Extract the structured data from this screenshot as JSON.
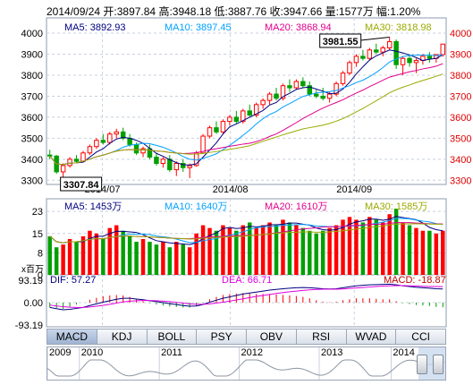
{
  "header": {
    "text": "2014/09/24 开:3897.84 高:3948.18 低:3887.76 收:3947.66 量:1577万 幅:1.20%"
  },
  "price_panel": {
    "ma_labels": [
      "MA5: 3892.93",
      "MA10: 3897.45",
      "MA20: 3868.94",
      "MA30: 3818.98"
    ],
    "ma_colors": [
      "#000080",
      "#00a0ff",
      "#e0008c",
      "#9aaa00"
    ],
    "yticks": [
      "4000",
      "3900",
      "3800",
      "3700",
      "3600",
      "3500",
      "3400",
      "3300"
    ],
    "xticks": [
      "2014/07",
      "2014/08",
      "2014/09"
    ],
    "callout_high": "3981.55",
    "callout_low": "3307.84"
  },
  "volume_panel": {
    "ma_labels": [
      "MA5: 1453万",
      "MA10: 1640万",
      "MA20: 1610万",
      "MA30: 1585万"
    ],
    "yticks": [
      "23",
      "15",
      "8",
      "0"
    ],
    "unit": "x百万"
  },
  "macd_panel": {
    "labels": [
      "DIF: 57.27",
      "DEA: 66.71",
      "MACD: -18.87"
    ],
    "yticks": [
      "93.19",
      "0.00",
      "-93.19"
    ]
  },
  "tabs": [
    "MACD",
    "KDJ",
    "BOLL",
    "PSY",
    "OBV",
    "RSI",
    "WVAD",
    "CCI"
  ],
  "navigator": {
    "years": [
      "2009",
      "2010",
      "2011",
      "2012",
      "2013",
      "2014"
    ]
  },
  "colors": {
    "up": "#ff0000",
    "down": "#00a000",
    "grid": "#c8d0dc",
    "frame": "#8c9bb0"
  },
  "chart_data": {
    "type": "candlestick",
    "ylim": [
      3280,
      4030
    ],
    "candles_ohlc": [
      [
        3420,
        3445,
        3400,
        3415
      ],
      [
        3415,
        3420,
        3330,
        3340
      ],
      [
        3340,
        3380,
        3308,
        3370
      ],
      [
        3370,
        3410,
        3360,
        3400
      ],
      [
        3400,
        3420,
        3380,
        3390
      ],
      [
        3390,
        3440,
        3385,
        3430
      ],
      [
        3430,
        3470,
        3420,
        3460
      ],
      [
        3460,
        3500,
        3450,
        3490
      ],
      [
        3490,
        3520,
        3470,
        3480
      ],
      [
        3480,
        3530,
        3470,
        3520
      ],
      [
        3520,
        3545,
        3500,
        3530
      ],
      [
        3530,
        3550,
        3490,
        3500
      ],
      [
        3500,
        3520,
        3460,
        3470
      ],
      [
        3470,
        3480,
        3420,
        3430
      ],
      [
        3430,
        3460,
        3410,
        3450
      ],
      [
        3450,
        3470,
        3400,
        3410
      ],
      [
        3410,
        3430,
        3370,
        3380
      ],
      [
        3380,
        3410,
        3360,
        3400
      ],
      [
        3400,
        3420,
        3340,
        3350
      ],
      [
        3350,
        3390,
        3320,
        3380
      ],
      [
        3380,
        3400,
        3340,
        3360
      ],
      [
        3360,
        3380,
        3310,
        3370
      ],
      [
        3370,
        3440,
        3365,
        3430
      ],
      [
        3430,
        3520,
        3425,
        3510
      ],
      [
        3510,
        3560,
        3500,
        3550
      ],
      [
        3550,
        3580,
        3520,
        3530
      ],
      [
        3530,
        3590,
        3520,
        3580
      ],
      [
        3580,
        3610,
        3560,
        3600
      ],
      [
        3600,
        3630,
        3570,
        3580
      ],
      [
        3580,
        3640,
        3570,
        3630
      ],
      [
        3630,
        3660,
        3600,
        3610
      ],
      [
        3610,
        3670,
        3600,
        3660
      ],
      [
        3660,
        3690,
        3640,
        3680
      ],
      [
        3680,
        3720,
        3660,
        3710
      ],
      [
        3710,
        3740,
        3680,
        3690
      ],
      [
        3690,
        3760,
        3680,
        3750
      ],
      [
        3750,
        3780,
        3720,
        3740
      ],
      [
        3740,
        3780,
        3730,
        3770
      ],
      [
        3770,
        3790,
        3740,
        3750
      ],
      [
        3750,
        3770,
        3700,
        3710
      ],
      [
        3710,
        3730,
        3690,
        3700
      ],
      [
        3700,
        3740,
        3680,
        3690
      ],
      [
        3690,
        3720,
        3670,
        3710
      ],
      [
        3710,
        3770,
        3700,
        3760
      ],
      [
        3760,
        3820,
        3750,
        3810
      ],
      [
        3810,
        3870,
        3800,
        3860
      ],
      [
        3860,
        3900,
        3840,
        3890
      ],
      [
        3890,
        3920,
        3870,
        3880
      ],
      [
        3880,
        3930,
        3870,
        3920
      ],
      [
        3920,
        3950,
        3900,
        3910
      ],
      [
        3910,
        3940,
        3890,
        3930
      ],
      [
        3930,
        3981,
        3920,
        3960
      ],
      [
        3960,
        3970,
        3830,
        3850
      ],
      [
        3850,
        3890,
        3800,
        3880
      ],
      [
        3880,
        3900,
        3840,
        3860
      ],
      [
        3860,
        3880,
        3810,
        3870
      ],
      [
        3870,
        3900,
        3850,
        3890
      ],
      [
        3890,
        3910,
        3860,
        3880
      ],
      [
        3880,
        3900,
        3860,
        3898
      ],
      [
        3898,
        3948,
        3888,
        3948
      ]
    ],
    "volume": [
      14,
      10,
      11,
      13,
      12,
      14,
      16,
      15,
      13,
      17,
      18,
      16,
      14,
      12,
      13,
      12,
      11,
      12,
      10,
      12,
      11,
      10,
      15,
      18,
      17,
      16,
      18,
      17,
      16,
      18,
      19,
      17,
      18,
      19,
      18,
      20,
      19,
      18,
      17,
      16,
      15,
      16,
      17,
      18,
      20,
      21,
      20,
      19,
      21,
      20,
      19,
      22,
      24,
      19,
      18,
      17,
      16,
      16,
      15,
      16
    ],
    "macd_dif": [
      -20,
      -25,
      -30,
      -28,
      -24,
      -20,
      -12,
      -5,
      2,
      8,
      14,
      18,
      18,
      15,
      12,
      8,
      4,
      0,
      -4,
      -8,
      -12,
      -15,
      -14,
      -8,
      2,
      10,
      18,
      24,
      30,
      36,
      40,
      44,
      48,
      52,
      55,
      58,
      60,
      62,
      63,
      62,
      60,
      58,
      57,
      58,
      62,
      66,
      70,
      72,
      74,
      75,
      76,
      77,
      74,
      70,
      67,
      64,
      62,
      60,
      58,
      57
    ],
    "macd_dea": [
      -10,
      -14,
      -17,
      -19,
      -20,
      -20,
      -18,
      -15,
      -11,
      -7,
      -2,
      3,
      6,
      8,
      9,
      9,
      8,
      6,
      4,
      1,
      -2,
      -5,
      -7,
      -7,
      -5,
      -2,
      2,
      6,
      11,
      16,
      21,
      26,
      30,
      34,
      38,
      42,
      45,
      48,
      51,
      53,
      55,
      56,
      56,
      56,
      57,
      59,
      61,
      63,
      65,
      67,
      69,
      70,
      71,
      71,
      70,
      69,
      68,
      67,
      67,
      66.71
    ],
    "series": [
      {
        "name": "MA5"
      },
      {
        "name": "MA10"
      },
      {
        "name": "MA20"
      },
      {
        "name": "MA30"
      }
    ]
  }
}
